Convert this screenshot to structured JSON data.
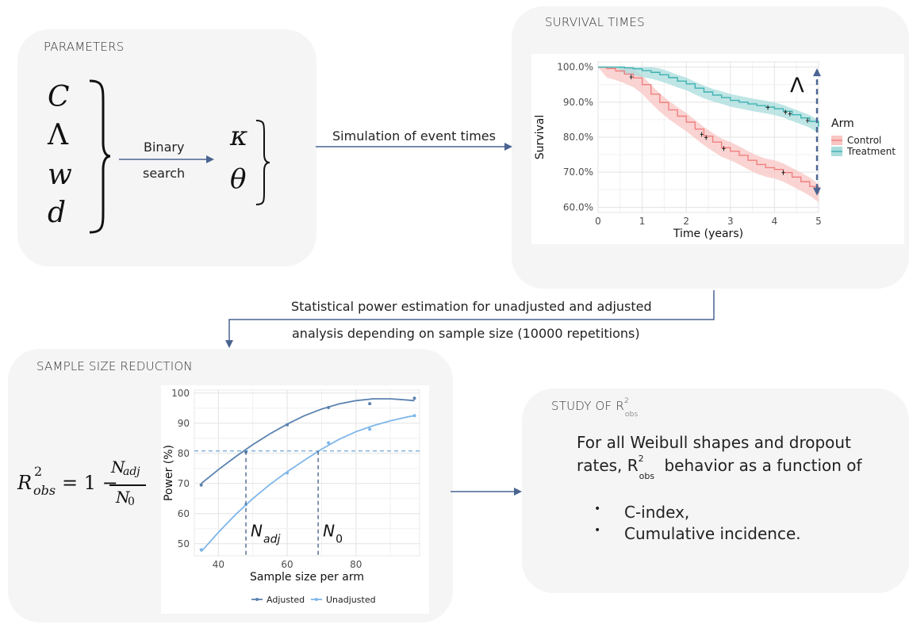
{
  "panels": {
    "parameters": {
      "title": "PARAMETERS"
    },
    "survival": {
      "title": "SURVIVAL TIMES"
    },
    "sample_size": {
      "title": "SAMPLE SIZE REDUCTION"
    },
    "study": {
      "title_main": "STUDY OF R",
      "title_sup": "2",
      "title_sub": "obs"
    }
  },
  "parameters": {
    "inputs": [
      "C",
      "Λ",
      "w",
      "d"
    ],
    "outputs": [
      "κ",
      "θ"
    ],
    "search_label_line1": "Binary",
    "search_label_line2": "search"
  },
  "flow": {
    "simulation_label": "Simulation of event times",
    "power_line1": "Statistical power estimation for unadjusted and adjusted",
    "power_line2": "analysis depending on sample size (10000 repetitions)"
  },
  "formula": {
    "lhs_base": "R",
    "lhs_sup": "2",
    "lhs_sub": "obs",
    "equals_one_minus": "= 1 −",
    "numerator_base": "N",
    "numerator_sub": "adj",
    "denominator_base": "N",
    "denominator_sub": "0"
  },
  "study": {
    "line1": "For all Weibull shapes and dropout",
    "line2_pre": "rates, R",
    "line2_sup": "2",
    "line2_sub": "obs",
    "line2_post": " behavior as a function of",
    "bullet_symbol": "•",
    "bullets": [
      "C-index,",
      "Cumulative incidence."
    ]
  },
  "colors": {
    "panel_bg": "#f5f5f6",
    "arrow": "#4a6491",
    "control": "#f08080",
    "control_band": "#f8c6c3",
    "treatment": "#3fb2b2",
    "treatment_band": "#a9dcdc",
    "adjusted": "#5b82b0",
    "unadjusted": "#7fb6ea"
  },
  "chart_data": [
    {
      "type": "line",
      "ylabel": "Survival",
      "xlabel": "Time (years)",
      "x_ticks": [
        "0",
        "1",
        "2",
        "3",
        "4",
        "5"
      ],
      "y_ticks": [
        "60.0%",
        "70.0%",
        "80.0%",
        "90.0%",
        "100.0%"
      ],
      "xlim": [
        0,
        5
      ],
      "ylim": [
        58.5,
        101.5
      ],
      "grid": true,
      "legend_title": "Arm",
      "legend_position": "right",
      "annotation": "Λ",
      "series": [
        {
          "name": "Control",
          "x": [
            0,
            0.2,
            0.4,
            0.6,
            0.8,
            1.0,
            1.2,
            1.4,
            1.6,
            1.8,
            2.0,
            2.2,
            2.4,
            2.6,
            2.8,
            3.0,
            3.2,
            3.4,
            3.6,
            3.8,
            4.0,
            4.2,
            4.4,
            4.6,
            4.8,
            5.0
          ],
          "y": [
            100,
            99.6,
            98.9,
            98.0,
            96.9,
            95.0,
            92.3,
            89.9,
            87.8,
            86.0,
            84.3,
            82.3,
            80.3,
            78.6,
            77.0,
            76.0,
            74.8,
            73.4,
            72.2,
            71.3,
            70.8,
            69.9,
            68.6,
            67.3,
            65.9,
            64.0
          ],
          "band": 2.6,
          "censor_x": [
            0.75,
            2.35,
            2.45,
            2.85,
            4.2
          ]
        },
        {
          "name": "Treatment",
          "x": [
            0,
            0.2,
            0.4,
            0.6,
            0.8,
            1.0,
            1.2,
            1.4,
            1.6,
            1.8,
            2.0,
            2.2,
            2.4,
            2.6,
            2.8,
            3.0,
            3.2,
            3.4,
            3.6,
            3.8,
            4.0,
            4.2,
            4.4,
            4.6,
            4.8,
            5.0
          ],
          "y": [
            100,
            100,
            100,
            99.8,
            99.5,
            99.0,
            98.5,
            97.8,
            97.0,
            96.0,
            95.2,
            94.0,
            92.9,
            92.0,
            91.3,
            90.5,
            90.0,
            89.5,
            89.0,
            88.6,
            88.1,
            87.4,
            86.4,
            85.5,
            84.5,
            83.0
          ],
          "band": 1.8,
          "censor_x": [
            3.85,
            4.25,
            4.35,
            4.75
          ]
        }
      ]
    },
    {
      "type": "line",
      "ylabel": "Power (%)",
      "xlabel": "Sample size per arm",
      "x_ticks": [
        "40",
        "60",
        "80"
      ],
      "y_ticks": [
        "50",
        "60",
        "70",
        "80",
        "90",
        "100"
      ],
      "xlim": [
        33,
        98.5
      ],
      "ylim": [
        46,
        101
      ],
      "grid": true,
      "legend_position": "bottom",
      "threshold": 80.8,
      "markers": [
        {
          "x": 48,
          "label_base": "N",
          "label_sub": "adj"
        },
        {
          "x": 69,
          "label_base": "N",
          "label_sub": "0"
        }
      ],
      "series": [
        {
          "name": "Adjusted",
          "points_x": [
            35,
            48,
            60,
            72,
            84,
            97
          ],
          "points_y": [
            69.5,
            80.5,
            89.5,
            95.2,
            96.5,
            98.3
          ],
          "curve_x": [
            35,
            40,
            45,
            50,
            55,
            60,
            65,
            70,
            75,
            80,
            85,
            90,
            95,
            97
          ],
          "curve_y": [
            70.0,
            74.6,
            78.9,
            82.9,
            86.5,
            89.7,
            92.5,
            94.7,
            96.4,
            97.5,
            98.1,
            98.1,
            97.7,
            97.5
          ]
        },
        {
          "name": "Unadjusted",
          "points_x": [
            35,
            48,
            60,
            72,
            84,
            97
          ],
          "points_y": [
            48.0,
            63.0,
            73.5,
            83.5,
            88.0,
            92.5
          ],
          "curve_x": [
            35,
            40,
            45,
            50,
            55,
            60,
            65,
            70,
            75,
            80,
            85,
            90,
            95,
            97
          ],
          "curve_y": [
            47.4,
            53.8,
            59.7,
            65.0,
            69.7,
            73.9,
            77.7,
            81.4,
            84.6,
            87.2,
            89.2,
            90.8,
            92.1,
            92.5
          ]
        }
      ]
    }
  ]
}
